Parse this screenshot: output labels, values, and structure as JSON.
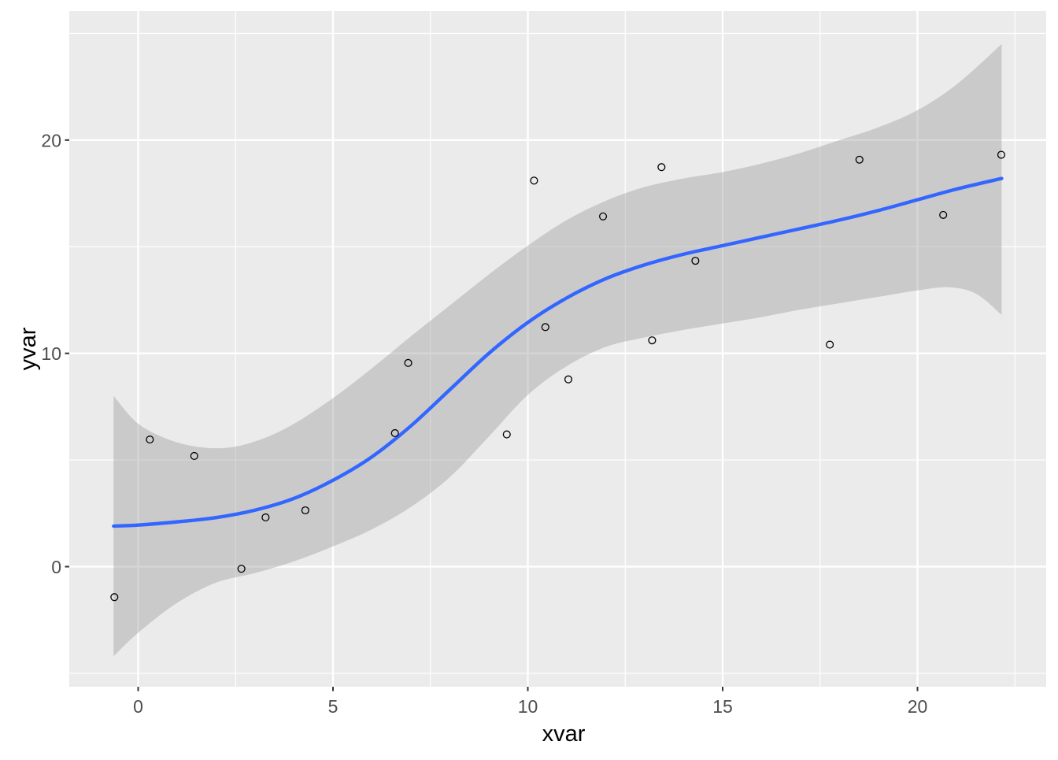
{
  "chart_data": {
    "type": "scatter",
    "title": "",
    "xlabel": "xvar",
    "ylabel": "yvar",
    "legend_position": "none",
    "grid": true,
    "xlim": [
      -1.77,
      23.3
    ],
    "ylim": [
      -5.6,
      25.9
    ],
    "x_major_ticks": [
      0,
      5,
      10,
      15,
      20
    ],
    "x_tick_labels": [
      "0",
      "5",
      "10",
      "15",
      "20"
    ],
    "x_minor_ticks": [
      2.5,
      7.5,
      12.5,
      17.5,
      22.5
    ],
    "y_major_ticks": [
      0,
      10,
      20
    ],
    "y_tick_labels": [
      "0",
      "10",
      "20"
    ],
    "y_minor_ticks": [
      -5,
      5,
      15,
      25
    ],
    "points": [
      [
        -0.61,
        -1.43
      ],
      [
        0.3,
        5.96
      ],
      [
        1.44,
        5.19
      ],
      [
        2.65,
        -0.1
      ],
      [
        3.27,
        2.31
      ],
      [
        4.29,
        2.64
      ],
      [
        6.59,
        6.26
      ],
      [
        6.93,
        9.55
      ],
      [
        9.46,
        6.2
      ],
      [
        10.16,
        18.1
      ],
      [
        10.45,
        11.23
      ],
      [
        11.04,
        8.78
      ],
      [
        11.93,
        16.42
      ],
      [
        13.19,
        10.61
      ],
      [
        13.43,
        18.73
      ],
      [
        14.3,
        14.34
      ],
      [
        17.75,
        10.41
      ],
      [
        18.51,
        19.08
      ],
      [
        20.66,
        16.49
      ],
      [
        22.15,
        19.31
      ]
    ],
    "smooth_line": [
      [
        -0.63,
        1.9
      ],
      [
        0,
        1.95
      ],
      [
        1,
        2.1
      ],
      [
        2,
        2.3
      ],
      [
        3,
        2.65
      ],
      [
        4,
        3.2
      ],
      [
        5,
        4.05
      ],
      [
        6,
        5.15
      ],
      [
        7,
        6.6
      ],
      [
        8,
        8.3
      ],
      [
        9,
        10.0
      ],
      [
        10,
        11.45
      ],
      [
        11,
        12.6
      ],
      [
        12,
        13.5
      ],
      [
        13,
        14.15
      ],
      [
        14,
        14.65
      ],
      [
        15,
        15.05
      ],
      [
        16,
        15.45
      ],
      [
        17,
        15.85
      ],
      [
        18,
        16.25
      ],
      [
        19,
        16.7
      ],
      [
        20,
        17.2
      ],
      [
        21,
        17.7
      ],
      [
        22.16,
        18.2
      ]
    ],
    "band_upper": [
      [
        -0.63,
        8.0
      ],
      [
        0,
        6.7
      ],
      [
        0.8,
        5.95
      ],
      [
        1.6,
        5.6
      ],
      [
        2.4,
        5.6
      ],
      [
        3.2,
        6.0
      ],
      [
        4,
        6.7
      ],
      [
        5,
        7.9
      ],
      [
        6,
        9.3
      ],
      [
        7,
        10.8
      ],
      [
        8,
        12.25
      ],
      [
        9,
        13.7
      ],
      [
        10,
        15.05
      ],
      [
        11,
        16.25
      ],
      [
        12,
        17.15
      ],
      [
        13,
        17.8
      ],
      [
        14,
        18.2
      ],
      [
        15,
        18.5
      ],
      [
        16,
        18.9
      ],
      [
        17,
        19.4
      ],
      [
        18,
        20.0
      ],
      [
        19,
        20.6
      ],
      [
        20,
        21.4
      ],
      [
        21,
        22.6
      ],
      [
        22.16,
        24.5
      ]
    ],
    "band_lower": [
      [
        -0.63,
        -4.2
      ],
      [
        0,
        -3.1
      ],
      [
        1,
        -1.7
      ],
      [
        2,
        -0.75
      ],
      [
        3,
        -0.3
      ],
      [
        4,
        0.25
      ],
      [
        5,
        0.95
      ],
      [
        6,
        1.75
      ],
      [
        7,
        2.8
      ],
      [
        8,
        4.2
      ],
      [
        9,
        6.1
      ],
      [
        10,
        8.05
      ],
      [
        11,
        9.4
      ],
      [
        12,
        10.3
      ],
      [
        13,
        10.75
      ],
      [
        14,
        11.1
      ],
      [
        15,
        11.4
      ],
      [
        16,
        11.7
      ],
      [
        17,
        12.05
      ],
      [
        18,
        12.35
      ],
      [
        19,
        12.65
      ],
      [
        20,
        12.95
      ],
      [
        20.8,
        13.1
      ],
      [
        21.5,
        12.8
      ],
      [
        22.16,
        11.8
      ]
    ],
    "colors": {
      "figure_background": "#FFFFFF",
      "panel_background": "#EBEBEB",
      "gridline": "#FFFFFF",
      "band_color": "#999999",
      "band_alpha": 0.4,
      "smooth_line_color": "#3366FF",
      "point_outline": "#000000",
      "tick_mark": "#333333",
      "tick_label_color": "#4D4D4D",
      "axis_title_color": "#000000"
    }
  }
}
